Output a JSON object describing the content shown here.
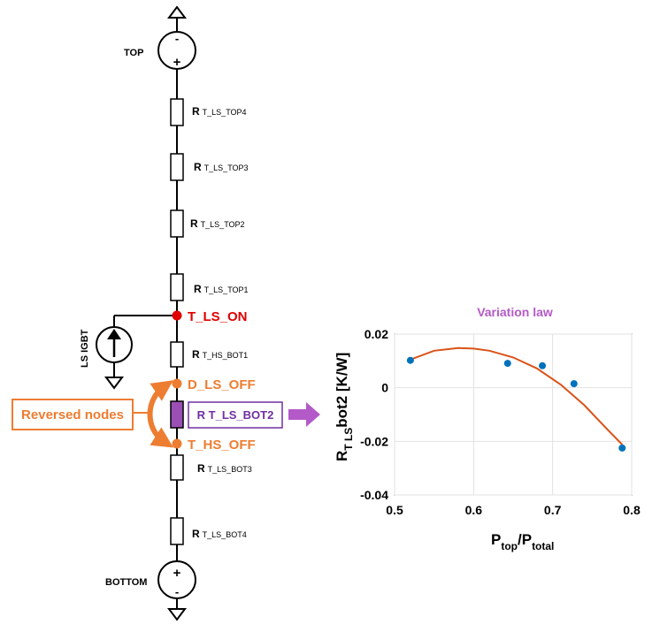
{
  "circuit": {
    "top_label": "TOP",
    "bottom_label": "BOTTOM",
    "source_label": "LS IGBT",
    "minus": "-",
    "plus": "+",
    "resistors": [
      {
        "main": "R",
        "sub": "T_LS_TOP4"
      },
      {
        "main": "R",
        "sub": "T_LS_TOP3"
      },
      {
        "main": "R",
        "sub": "T_LS_TOP2"
      },
      {
        "main": "R",
        "sub": "T_LS_TOP1"
      },
      {
        "main": "R",
        "sub": "T_HS_BOT1"
      },
      {
        "main": "R",
        "sub": "T_LS_BOT3"
      },
      {
        "main": "R",
        "sub": "T_LS_BOT4"
      }
    ],
    "highlight_resistor": "R T_LS_BOT2",
    "nodes": {
      "t_ls_on": "T_LS_ON",
      "d_ls_off": "D_LS_OFF",
      "t_hs_off": "T_HS_OFF"
    },
    "reversed_nodes": "Reversed nodes",
    "colors": {
      "red": "#e00000",
      "orange": "#ed7d31",
      "purple": "#7030a0",
      "highlight_fill": "#9b4fb5",
      "arrow": "#b45ac8"
    }
  },
  "chart_data": {
    "type": "scatter",
    "title": "Variation law",
    "ylabel": "R",
    "ylabel_sub": "T LS",
    "ylabel_rest": "bot2 [K/W]",
    "xlabel": "P",
    "xlabel_sub1": "top",
    "xlabel_mid": "/P",
    "xlabel_sub2": "total",
    "xlim": [
      0.5,
      0.8
    ],
    "ylim": [
      -0.04,
      0.02
    ],
    "xticks": [
      "0.5",
      "0.6",
      "0.7",
      "0.8"
    ],
    "yticks": [
      "0.02",
      "0",
      "-0.02",
      "-0.04"
    ],
    "grid": true,
    "points": {
      "x": [
        0.52,
        0.643,
        0.687,
        0.727,
        0.788
      ],
      "y": [
        0.0102,
        0.0091,
        0.0082,
        0.0015,
        -0.0225
      ]
    },
    "fit": {
      "x": [
        0.52,
        0.55,
        0.58,
        0.6,
        0.62,
        0.65,
        0.68,
        0.71,
        0.74,
        0.77,
        0.788
      ],
      "y": [
        0.0105,
        0.0138,
        0.0148,
        0.0146,
        0.0138,
        0.0113,
        0.0072,
        0.0012,
        -0.0065,
        -0.0158,
        -0.0212
      ]
    },
    "point_color": "#0072bd",
    "line_color": "#d95319"
  }
}
